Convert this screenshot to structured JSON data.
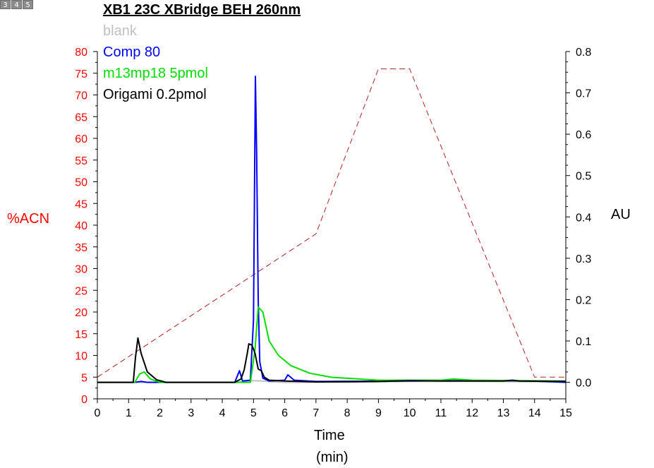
{
  "window": {
    "page_tabs": [
      "3",
      "4",
      "5"
    ]
  },
  "chart_data": {
    "type": "line",
    "title": "XB1 23C XBridge BEH 260nm",
    "xlabel": "Time",
    "xlabel_unit": "(min)",
    "ylabel_left": "%ACN",
    "ylabel_right": "AU",
    "xlim": [
      0,
      15
    ],
    "ylim_left": [
      0,
      80
    ],
    "ylim_right": [
      -0.04,
      0.8
    ],
    "x_ticks": [
      0,
      1,
      2,
      3,
      4,
      5,
      6,
      7,
      8,
      9,
      10,
      11,
      12,
      13,
      14,
      15
    ],
    "y_left_ticks": [
      0,
      5,
      10,
      15,
      20,
      25,
      30,
      35,
      40,
      45,
      50,
      55,
      60,
      65,
      70,
      75,
      80
    ],
    "y_right_ticks": [
      "0.0",
      "0.1",
      "0.2",
      "0.3",
      "0.4",
      "0.5",
      "0.6",
      "0.7",
      "0.8"
    ],
    "legend_position": "top-left",
    "colors": {
      "left_axis": "#ff0000",
      "right_axis": "#000000",
      "gradient": "#b22222"
    },
    "gradient": {
      "name": "%ACN",
      "color": "#b22222",
      "axis": "left",
      "style": "dashed",
      "x": [
        0,
        7,
        9,
        10,
        14,
        15
      ],
      "y": [
        5,
        38,
        76,
        76,
        5,
        5
      ]
    },
    "series": [
      {
        "name": "blank",
        "color": "#c0c0c0",
        "axis": "right",
        "x": [
          0.0,
          4.5,
          4.9,
          5.3,
          5.6,
          6.0,
          8.0,
          10.0,
          12.0,
          15.0
        ],
        "y": [
          0.0,
          0.0,
          0.004,
          0.003,
          0.001,
          0.0,
          0.0,
          0.002,
          0.002,
          0.001
        ]
      },
      {
        "name": "Comp 80",
        "color": "#0000ff",
        "axis": "right",
        "x": [
          0.0,
          1.2,
          1.4,
          1.6,
          4.4,
          4.55,
          4.65,
          4.9,
          5.0,
          5.06,
          5.1,
          5.15,
          5.2,
          5.3,
          5.5,
          6.0,
          6.1,
          6.3,
          7.0,
          10.0,
          12.0,
          14.0,
          15.0
        ],
        "y": [
          0.0,
          0.0,
          0.002,
          0.0,
          0.0,
          0.028,
          0.003,
          0.005,
          0.15,
          0.74,
          0.55,
          0.2,
          0.05,
          0.01,
          0.003,
          0.005,
          0.018,
          0.005,
          0.002,
          0.003,
          0.004,
          0.003,
          0.0
        ]
      },
      {
        "name": "m13mp18 5pmol",
        "color": "#00dd00",
        "axis": "right",
        "x": [
          0.0,
          1.2,
          1.35,
          1.5,
          1.7,
          2.0,
          4.9,
          5.05,
          5.15,
          5.3,
          5.5,
          5.8,
          6.2,
          6.8,
          7.5,
          9.0,
          11.0,
          11.4,
          12.0,
          15.0
        ],
        "y": [
          0.0,
          0.0,
          0.02,
          0.025,
          0.008,
          0.0,
          0.0,
          0.08,
          0.182,
          0.17,
          0.1,
          0.065,
          0.04,
          0.022,
          0.012,
          0.005,
          0.005,
          0.008,
          0.005,
          0.003
        ]
      },
      {
        "name": "Origami 0.2pmol",
        "color": "#000000",
        "axis": "right",
        "x": [
          0.0,
          1.15,
          1.22,
          1.3,
          1.4,
          1.6,
          1.9,
          2.2,
          4.4,
          4.6,
          4.7,
          4.8,
          4.85,
          4.95,
          5.05,
          5.15,
          5.25,
          5.35,
          5.5,
          6.0,
          7.0,
          9.0,
          10.0,
          11.0,
          13.0,
          13.3,
          13.5,
          15.0
        ],
        "y": [
          0.0,
          0.0,
          0.06,
          0.107,
          0.07,
          0.025,
          0.006,
          0.0,
          0.0,
          0.008,
          0.03,
          0.07,
          0.093,
          0.09,
          0.07,
          0.032,
          0.028,
          0.012,
          0.005,
          0.003,
          0.001,
          0.002,
          0.004,
          0.003,
          0.003,
          0.005,
          0.003,
          0.002
        ]
      }
    ]
  }
}
